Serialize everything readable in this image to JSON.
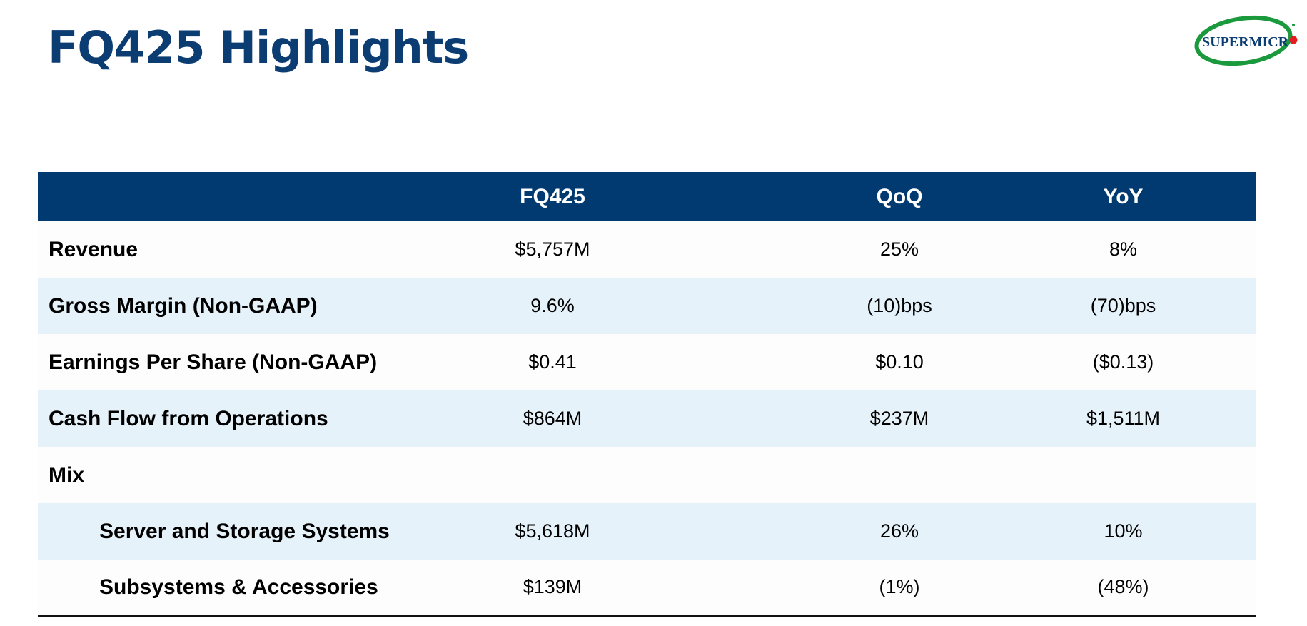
{
  "page": {
    "title": "FQ425 Highlights"
  },
  "logo": {
    "text": "SUPERMICR",
    "ring_color": "#1a9a3c",
    "text_color": "#0b3d73",
    "dot_color": "#e31b23"
  },
  "table": {
    "headers": [
      "",
      "FQ425",
      "QoQ",
      "YoY"
    ],
    "rows": [
      {
        "label": "Revenue",
        "fq425": "$5,757M",
        "qoq": "25%",
        "yoy": "8%"
      },
      {
        "label": "Gross Margin (Non-GAAP)",
        "fq425": "9.6%",
        "qoq": "(10)bps",
        "yoy": "(70)bps"
      },
      {
        "label": "Earnings Per Share (Non-GAAP)",
        "fq425": "$0.41",
        "qoq": "$0.10",
        "yoy": "($0.13)"
      },
      {
        "label": "Cash Flow from Operations",
        "fq425": "$864M",
        "qoq": "$237M",
        "yoy": "$1,511M"
      },
      {
        "label": "Mix",
        "fq425": "",
        "qoq": "",
        "yoy": ""
      },
      {
        "label": "Server and Storage Systems",
        "fq425": "$5,618M",
        "qoq": "26%",
        "yoy": "10%"
      },
      {
        "label": "Subsystems & Accessories",
        "fq425": "$139M",
        "qoq": "(1%)",
        "yoy": "(48%)"
      }
    ]
  },
  "colors": {
    "title": "#0b3d73",
    "header_bg": "#003a70",
    "header_text": "#ffffff",
    "row_shade": "#e6f2fa"
  }
}
